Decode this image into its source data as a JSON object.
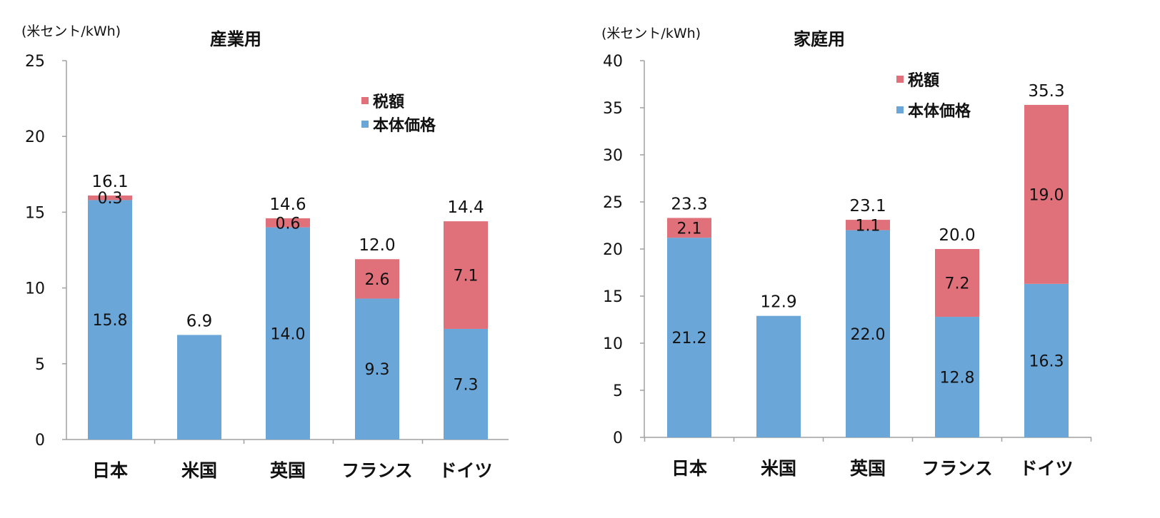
{
  "colors": {
    "tax": "#e0707a",
    "base": "#6aa7d8",
    "axis": "#a0a0a0"
  },
  "chart_data": [
    {
      "type": "bar",
      "stacked": true,
      "title": "産業用",
      "ylabel": "(米セント/kWh)",
      "ylim": [
        0,
        25
      ],
      "yticks": [
        0,
        5,
        10,
        15,
        20,
        25
      ],
      "categories": [
        "日本",
        "米国",
        "英国",
        "フランス",
        "ドイツ"
      ],
      "series": [
        {
          "name": "本体価格",
          "values": [
            15.8,
            6.9,
            14.0,
            9.3,
            7.3
          ]
        },
        {
          "name": "税額",
          "values": [
            0.3,
            0.0,
            0.6,
            2.6,
            7.1
          ]
        }
      ],
      "totals": [
        16.1,
        6.9,
        14.6,
        12.0,
        14.4
      ],
      "base_labels": [
        "15.8",
        "",
        "14.0",
        "9.3",
        "7.3"
      ],
      "tax_labels": [
        "0.3",
        "",
        "0.6",
        "2.6",
        "7.1"
      ],
      "total_labels": [
        "16.1",
        "6.9",
        "14.6",
        "12.0",
        "14.4"
      ],
      "legend": [
        "税額",
        "本体価格"
      ]
    },
    {
      "type": "bar",
      "stacked": true,
      "title": "家庭用",
      "ylabel": "(米セント/kWh)",
      "ylim": [
        0,
        40
      ],
      "yticks": [
        0,
        5,
        10,
        15,
        20,
        25,
        30,
        35,
        40
      ],
      "categories": [
        "日本",
        "米国",
        "英国",
        "フランス",
        "ドイツ"
      ],
      "series": [
        {
          "name": "本体価格",
          "values": [
            21.2,
            12.9,
            22.0,
            12.8,
            16.3
          ]
        },
        {
          "name": "税額",
          "values": [
            2.1,
            0.0,
            1.1,
            7.2,
            19.0
          ]
        }
      ],
      "totals": [
        23.3,
        12.9,
        23.1,
        20.0,
        35.3
      ],
      "base_labels": [
        "21.2",
        "",
        "22.0",
        "12.8",
        "16.3"
      ],
      "tax_labels": [
        "2.1",
        "",
        "1.1",
        "7.2",
        "19.0"
      ],
      "total_labels": [
        "23.3",
        "12.9",
        "23.1",
        "20.0",
        "35.3"
      ],
      "legend": [
        "税額",
        "本体価格"
      ]
    }
  ]
}
